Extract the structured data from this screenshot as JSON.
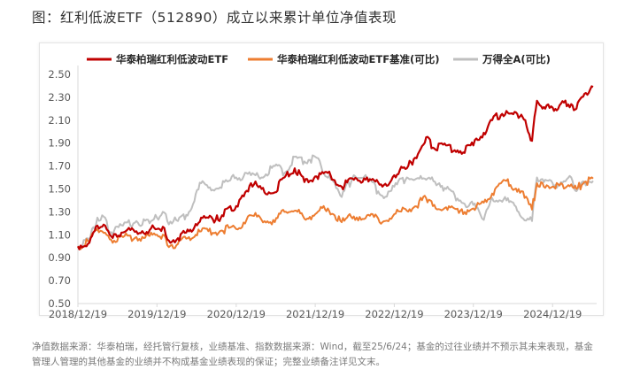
{
  "page": {
    "title": "图：红利低波ETF（512890）成立以来累计单位净值表现",
    "source_note": "净值数据来源：华泰柏瑞，经托管行复核，业绩基准、指数数据来源：Wind，截至25/6/24；基金的过往业绩并不预示其未来表现，基金管理人管理的其他基金的业绩并不构成基金业绩表现的保证；完整业绩备注详见文末。"
  },
  "chart_data": {
    "type": "line",
    "title": "",
    "xlabel": "",
    "ylabel": "",
    "x_ticks": [
      "2018/12/19",
      "2019/12/19",
      "2020/12/19",
      "2021/12/19",
      "2022/12/19",
      "2023/12/19",
      "2024/12/19"
    ],
    "y_ticks": [
      "0.50",
      "0.70",
      "0.90",
      "1.10",
      "1.30",
      "1.50",
      "1.70",
      "1.90",
      "2.10",
      "2.30",
      "2.50"
    ],
    "xlim": [
      "2018/12/19",
      "2025/06/24"
    ],
    "ylim": [
      0.5,
      2.5
    ],
    "grid": false,
    "legend_position": "top",
    "series": [
      {
        "name": "华泰柏瑞红利低波动ETF",
        "color": "#c00000",
        "points": [
          [
            "2018/12/19",
            1.0
          ],
          [
            "2019/02/10",
            1.03
          ],
          [
            "2019/03/19",
            1.18
          ],
          [
            "2019/04/10",
            1.17
          ],
          [
            "2019/05/15",
            1.1
          ],
          [
            "2019/07/15",
            1.12
          ],
          [
            "2019/09/15",
            1.13
          ],
          [
            "2019/11/15",
            1.14
          ],
          [
            "2019/12/19",
            1.15
          ],
          [
            "2020/01/15",
            1.17
          ],
          [
            "2020/02/05",
            1.06
          ],
          [
            "2020/03/25",
            1.07
          ],
          [
            "2020/05/15",
            1.13
          ],
          [
            "2020/07/10",
            1.25
          ],
          [
            "2020/09/15",
            1.23
          ],
          [
            "2020/10/15",
            1.27
          ],
          [
            "2020/11/15",
            1.34
          ],
          [
            "2020/12/19",
            1.35
          ],
          [
            "2021/01/10",
            1.42
          ],
          [
            "2021/02/25",
            1.55
          ],
          [
            "2021/04/15",
            1.5
          ],
          [
            "2021/06/15",
            1.47
          ],
          [
            "2021/07/30",
            1.6
          ],
          [
            "2021/09/15",
            1.68
          ],
          [
            "2021/10/30",
            1.56
          ],
          [
            "2021/12/19",
            1.61
          ],
          [
            "2022/02/15",
            1.64
          ],
          [
            "2022/04/20",
            1.52
          ],
          [
            "2022/06/15",
            1.58
          ],
          [
            "2022/08/15",
            1.6
          ],
          [
            "2022/10/25",
            1.52
          ],
          [
            "2022/12/19",
            1.62
          ],
          [
            "2023/02/15",
            1.68
          ],
          [
            "2023/04/20",
            1.85
          ],
          [
            "2023/05/15",
            1.95
          ],
          [
            "2023/06/15",
            1.86
          ],
          [
            "2023/08/15",
            1.88
          ],
          [
            "2023/10/20",
            1.83
          ],
          [
            "2023/12/19",
            1.88
          ],
          [
            "2024/02/05",
            1.99
          ],
          [
            "2024/03/15",
            2.1
          ],
          [
            "2024/05/20",
            2.18
          ],
          [
            "2024/07/15",
            2.12
          ],
          [
            "2024/08/15",
            2.1
          ],
          [
            "2024/09/15",
            1.92
          ],
          [
            "2024/10/08",
            2.27
          ],
          [
            "2024/11/15",
            2.2
          ],
          [
            "2024/12/19",
            2.21
          ],
          [
            "2025/01/20",
            2.23
          ],
          [
            "2025/03/15",
            2.24
          ],
          [
            "2025/04/08",
            2.2
          ],
          [
            "2025/05/15",
            2.33
          ],
          [
            "2025/06/24",
            2.39
          ]
        ]
      },
      {
        "name": "华泰柏瑞红利低波动ETF基准(可比)",
        "color": "#ed7d31",
        "points": [
          [
            "2018/12/19",
            1.0
          ],
          [
            "2019/02/10",
            1.04
          ],
          [
            "2019/03/19",
            1.15
          ],
          [
            "2019/04/10",
            1.13
          ],
          [
            "2019/05/15",
            1.06
          ],
          [
            "2019/07/15",
            1.08
          ],
          [
            "2019/09/15",
            1.08
          ],
          [
            "2019/11/15",
            1.09
          ],
          [
            "2019/12/19",
            1.1
          ],
          [
            "2020/01/15",
            1.1
          ],
          [
            "2020/02/05",
            1.01
          ],
          [
            "2020/03/25",
            1.02
          ],
          [
            "2020/05/15",
            1.08
          ],
          [
            "2020/07/10",
            1.13
          ],
          [
            "2020/09/15",
            1.12
          ],
          [
            "2020/11/15",
            1.16
          ],
          [
            "2020/12/19",
            1.15
          ],
          [
            "2021/02/25",
            1.27
          ],
          [
            "2021/04/15",
            1.23
          ],
          [
            "2021/06/15",
            1.21
          ],
          [
            "2021/07/30",
            1.3
          ],
          [
            "2021/09/15",
            1.31
          ],
          [
            "2021/10/30",
            1.24
          ],
          [
            "2021/12/19",
            1.28
          ],
          [
            "2022/02/15",
            1.33
          ],
          [
            "2022/04/20",
            1.21
          ],
          [
            "2022/06/15",
            1.26
          ],
          [
            "2022/08/15",
            1.27
          ],
          [
            "2022/10/25",
            1.21
          ],
          [
            "2022/12/19",
            1.28
          ],
          [
            "2023/02/15",
            1.31
          ],
          [
            "2023/05/15",
            1.42
          ],
          [
            "2023/06/15",
            1.35
          ],
          [
            "2023/08/15",
            1.34
          ],
          [
            "2023/10/20",
            1.31
          ],
          [
            "2023/12/19",
            1.33
          ],
          [
            "2024/02/05",
            1.38
          ],
          [
            "2024/03/15",
            1.46
          ],
          [
            "2024/05/20",
            1.57
          ],
          [
            "2024/07/15",
            1.5
          ],
          [
            "2024/09/15",
            1.32
          ],
          [
            "2024/10/08",
            1.55
          ],
          [
            "2024/11/15",
            1.51
          ],
          [
            "2024/12/19",
            1.52
          ],
          [
            "2025/01/20",
            1.53
          ],
          [
            "2025/03/15",
            1.54
          ],
          [
            "2025/04/08",
            1.5
          ],
          [
            "2025/05/15",
            1.56
          ],
          [
            "2025/06/24",
            1.59
          ]
        ]
      },
      {
        "name": "万得全A(可比)",
        "color": "#bfbfbf",
        "points": [
          [
            "2018/12/19",
            1.0
          ],
          [
            "2019/02/10",
            1.05
          ],
          [
            "2019/03/19",
            1.25
          ],
          [
            "2019/04/10",
            1.27
          ],
          [
            "2019/05/15",
            1.12
          ],
          [
            "2019/07/15",
            1.18
          ],
          [
            "2019/09/15",
            1.22
          ],
          [
            "2019/11/15",
            1.2
          ],
          [
            "2019/12/19",
            1.25
          ],
          [
            "2020/01/15",
            1.3
          ],
          [
            "2020/02/05",
            1.22
          ],
          [
            "2020/03/25",
            1.22
          ],
          [
            "2020/05/15",
            1.3
          ],
          [
            "2020/07/10",
            1.55
          ],
          [
            "2020/09/15",
            1.5
          ],
          [
            "2020/11/15",
            1.57
          ],
          [
            "2020/12/19",
            1.6
          ],
          [
            "2021/02/25",
            1.62
          ],
          [
            "2021/04/15",
            1.6
          ],
          [
            "2021/06/15",
            1.7
          ],
          [
            "2021/07/30",
            1.64
          ],
          [
            "2021/09/15",
            1.78
          ],
          [
            "2021/10/30",
            1.74
          ],
          [
            "2021/12/19",
            1.78
          ],
          [
            "2022/01/15",
            1.7
          ],
          [
            "2022/04/20",
            1.43
          ],
          [
            "2022/06/15",
            1.62
          ],
          [
            "2022/08/15",
            1.59
          ],
          [
            "2022/10/25",
            1.44
          ],
          [
            "2022/12/19",
            1.52
          ],
          [
            "2023/02/15",
            1.6
          ],
          [
            "2023/05/15",
            1.58
          ],
          [
            "2023/07/15",
            1.55
          ],
          [
            "2023/08/15",
            1.5
          ],
          [
            "2023/10/20",
            1.4
          ],
          [
            "2023/12/19",
            1.36
          ],
          [
            "2024/01/20",
            1.28
          ],
          [
            "2024/02/05",
            1.23
          ],
          [
            "2024/03/15",
            1.42
          ],
          [
            "2024/05/20",
            1.4
          ],
          [
            "2024/07/15",
            1.3
          ],
          [
            "2024/09/15",
            1.22
          ],
          [
            "2024/10/08",
            1.6
          ],
          [
            "2024/11/15",
            1.58
          ],
          [
            "2024/12/19",
            1.55
          ],
          [
            "2025/01/20",
            1.53
          ],
          [
            "2025/03/15",
            1.6
          ],
          [
            "2025/04/08",
            1.48
          ],
          [
            "2025/05/15",
            1.56
          ],
          [
            "2025/06/24",
            1.57
          ]
        ]
      }
    ]
  }
}
